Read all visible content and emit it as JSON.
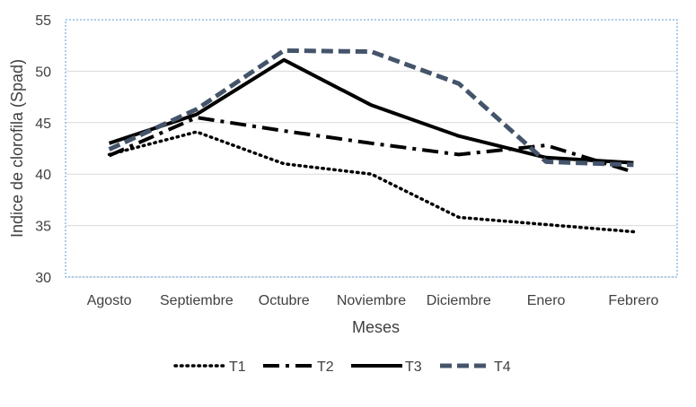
{
  "chart_data": {
    "type": "line",
    "title": "",
    "xlabel": "Meses",
    "ylabel": "Indice de clorofila (Spad)",
    "ylim": [
      30,
      55
    ],
    "yticks": [
      30,
      35,
      40,
      45,
      50,
      55
    ],
    "grid": true,
    "legend_position": "bottom",
    "categories": [
      "Agosto",
      "Septiembre",
      "Octubre",
      "Noviembre",
      "Diciembre",
      "Enero",
      "Febrero"
    ],
    "series": [
      {
        "name": "T1",
        "style": "dotted",
        "color": "#000000",
        "values": [
          41.9,
          44.1,
          41.0,
          40.0,
          35.8,
          35.1,
          34.4
        ]
      },
      {
        "name": "T2",
        "style": "dash-dot",
        "color": "#000000",
        "values": [
          41.8,
          45.5,
          44.2,
          43.0,
          41.9,
          42.8,
          40.2
        ]
      },
      {
        "name": "T3",
        "style": "solid",
        "color": "#000000",
        "values": [
          43.0,
          45.8,
          51.1,
          46.7,
          43.7,
          41.6,
          41.1
        ]
      },
      {
        "name": "T4",
        "style": "dashed",
        "color": "#44546a",
        "values": [
          42.4,
          46.3,
          52.0,
          51.9,
          48.8,
          41.2,
          40.9
        ]
      }
    ]
  }
}
